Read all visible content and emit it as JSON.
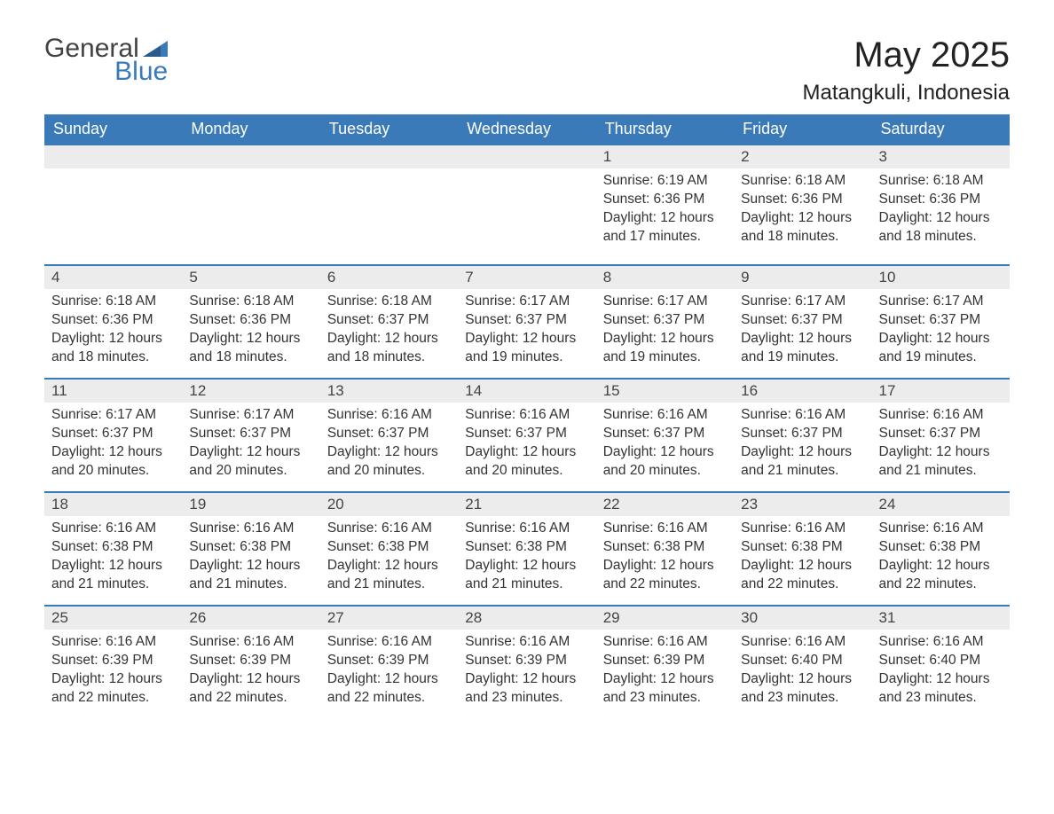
{
  "logo": {
    "word1": "General",
    "word2": "Blue"
  },
  "title": "May 2025",
  "location": "Matangkuli, Indonesia",
  "colors": {
    "header_bg": "#3b7ab8",
    "header_text": "#ffffff",
    "daybar_bg": "#ececec",
    "daybar_border": "#3b7ab8",
    "body_text": "#333333",
    "page_bg": "#ffffff",
    "logo_gray": "#424242",
    "logo_blue": "#3a7ab8"
  },
  "weekdays": [
    "Sunday",
    "Monday",
    "Tuesday",
    "Wednesday",
    "Thursday",
    "Friday",
    "Saturday"
  ],
  "weeks": [
    [
      null,
      null,
      null,
      null,
      {
        "n": "1",
        "sr": "6:19 AM",
        "ss": "6:36 PM",
        "dl": "12 hours and 17 minutes."
      },
      {
        "n": "2",
        "sr": "6:18 AM",
        "ss": "6:36 PM",
        "dl": "12 hours and 18 minutes."
      },
      {
        "n": "3",
        "sr": "6:18 AM",
        "ss": "6:36 PM",
        "dl": "12 hours and 18 minutes."
      }
    ],
    [
      {
        "n": "4",
        "sr": "6:18 AM",
        "ss": "6:36 PM",
        "dl": "12 hours and 18 minutes."
      },
      {
        "n": "5",
        "sr": "6:18 AM",
        "ss": "6:36 PM",
        "dl": "12 hours and 18 minutes."
      },
      {
        "n": "6",
        "sr": "6:18 AM",
        "ss": "6:37 PM",
        "dl": "12 hours and 18 minutes."
      },
      {
        "n": "7",
        "sr": "6:17 AM",
        "ss": "6:37 PM",
        "dl": "12 hours and 19 minutes."
      },
      {
        "n": "8",
        "sr": "6:17 AM",
        "ss": "6:37 PM",
        "dl": "12 hours and 19 minutes."
      },
      {
        "n": "9",
        "sr": "6:17 AM",
        "ss": "6:37 PM",
        "dl": "12 hours and 19 minutes."
      },
      {
        "n": "10",
        "sr": "6:17 AM",
        "ss": "6:37 PM",
        "dl": "12 hours and 19 minutes."
      }
    ],
    [
      {
        "n": "11",
        "sr": "6:17 AM",
        "ss": "6:37 PM",
        "dl": "12 hours and 20 minutes."
      },
      {
        "n": "12",
        "sr": "6:17 AM",
        "ss": "6:37 PM",
        "dl": "12 hours and 20 minutes."
      },
      {
        "n": "13",
        "sr": "6:16 AM",
        "ss": "6:37 PM",
        "dl": "12 hours and 20 minutes."
      },
      {
        "n": "14",
        "sr": "6:16 AM",
        "ss": "6:37 PM",
        "dl": "12 hours and 20 minutes."
      },
      {
        "n": "15",
        "sr": "6:16 AM",
        "ss": "6:37 PM",
        "dl": "12 hours and 20 minutes."
      },
      {
        "n": "16",
        "sr": "6:16 AM",
        "ss": "6:37 PM",
        "dl": "12 hours and 21 minutes."
      },
      {
        "n": "17",
        "sr": "6:16 AM",
        "ss": "6:37 PM",
        "dl": "12 hours and 21 minutes."
      }
    ],
    [
      {
        "n": "18",
        "sr": "6:16 AM",
        "ss": "6:38 PM",
        "dl": "12 hours and 21 minutes."
      },
      {
        "n": "19",
        "sr": "6:16 AM",
        "ss": "6:38 PM",
        "dl": "12 hours and 21 minutes."
      },
      {
        "n": "20",
        "sr": "6:16 AM",
        "ss": "6:38 PM",
        "dl": "12 hours and 21 minutes."
      },
      {
        "n": "21",
        "sr": "6:16 AM",
        "ss": "6:38 PM",
        "dl": "12 hours and 21 minutes."
      },
      {
        "n": "22",
        "sr": "6:16 AM",
        "ss": "6:38 PM",
        "dl": "12 hours and 22 minutes."
      },
      {
        "n": "23",
        "sr": "6:16 AM",
        "ss": "6:38 PM",
        "dl": "12 hours and 22 minutes."
      },
      {
        "n": "24",
        "sr": "6:16 AM",
        "ss": "6:38 PM",
        "dl": "12 hours and 22 minutes."
      }
    ],
    [
      {
        "n": "25",
        "sr": "6:16 AM",
        "ss": "6:39 PM",
        "dl": "12 hours and 22 minutes."
      },
      {
        "n": "26",
        "sr": "6:16 AM",
        "ss": "6:39 PM",
        "dl": "12 hours and 22 minutes."
      },
      {
        "n": "27",
        "sr": "6:16 AM",
        "ss": "6:39 PM",
        "dl": "12 hours and 22 minutes."
      },
      {
        "n": "28",
        "sr": "6:16 AM",
        "ss": "6:39 PM",
        "dl": "12 hours and 23 minutes."
      },
      {
        "n": "29",
        "sr": "6:16 AM",
        "ss": "6:39 PM",
        "dl": "12 hours and 23 minutes."
      },
      {
        "n": "30",
        "sr": "6:16 AM",
        "ss": "6:40 PM",
        "dl": "12 hours and 23 minutes."
      },
      {
        "n": "31",
        "sr": "6:16 AM",
        "ss": "6:40 PM",
        "dl": "12 hours and 23 minutes."
      }
    ]
  ],
  "labels": {
    "sunrise": "Sunrise: ",
    "sunset": "Sunset: ",
    "daylight": "Daylight: "
  }
}
